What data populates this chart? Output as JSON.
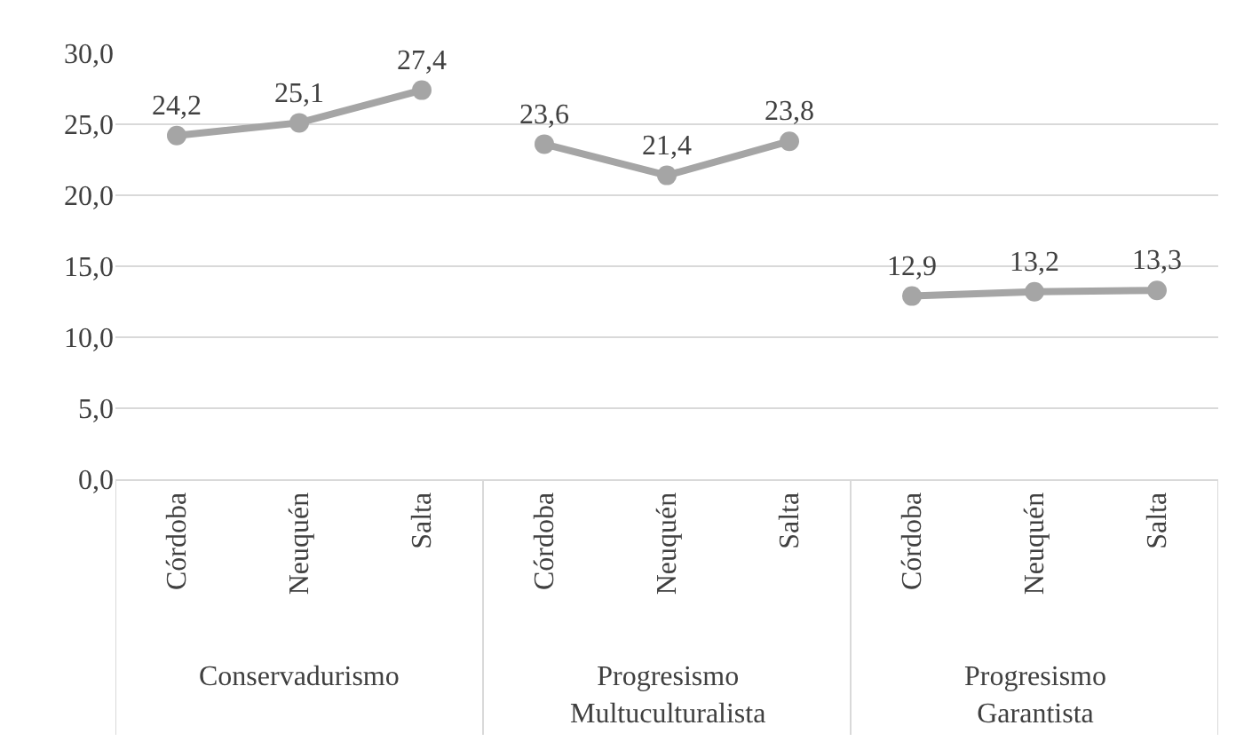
{
  "chart_data": {
    "type": "line",
    "categories": [
      "Córdoba",
      "Neuquén",
      "Salta",
      "Córdoba",
      "Neuquén",
      "Salta",
      "Córdoba",
      "Neuquén",
      "Salta"
    ],
    "series": [
      {
        "color": "#a5a5a5",
        "values": [
          24.2,
          25.1,
          27.4,
          null,
          null,
          null,
          null,
          null,
          null
        ],
        "value_labels": [
          "24,2",
          "25,1",
          "27,4",
          null,
          null,
          null,
          null,
          null,
          null
        ]
      },
      {
        "color": "#a5a5a5",
        "values": [
          null,
          null,
          null,
          23.6,
          21.4,
          23.8,
          null,
          null,
          null
        ],
        "value_labels": [
          null,
          null,
          null,
          "23,6",
          "21,4",
          "23,8",
          null,
          null,
          null
        ]
      },
      {
        "color": "#a5a5a5",
        "values": [
          null,
          null,
          null,
          null,
          null,
          null,
          12.9,
          13.2,
          13.3
        ],
        "value_labels": [
          null,
          null,
          null,
          null,
          null,
          null,
          "12,9",
          "13,2",
          "13,3"
        ]
      }
    ],
    "annotations": [
      "Conservadurismo",
      "Progresismo Multuculturalista",
      "Progresismo Garantista"
    ],
    "ylim": [
      0,
      30
    ],
    "yticks": [
      {
        "value": 0,
        "label": "0,0"
      },
      {
        "value": 5,
        "label": "5,0"
      },
      {
        "value": 10,
        "label": "10,0"
      },
      {
        "value": 15,
        "label": "15,0"
      },
      {
        "value": 20,
        "label": "20,0"
      },
      {
        "value": 25,
        "label": "25,0"
      },
      {
        "value": 30,
        "label": "30,0"
      }
    ],
    "grid": "y",
    "marker": "circle",
    "line_style": "solid"
  }
}
